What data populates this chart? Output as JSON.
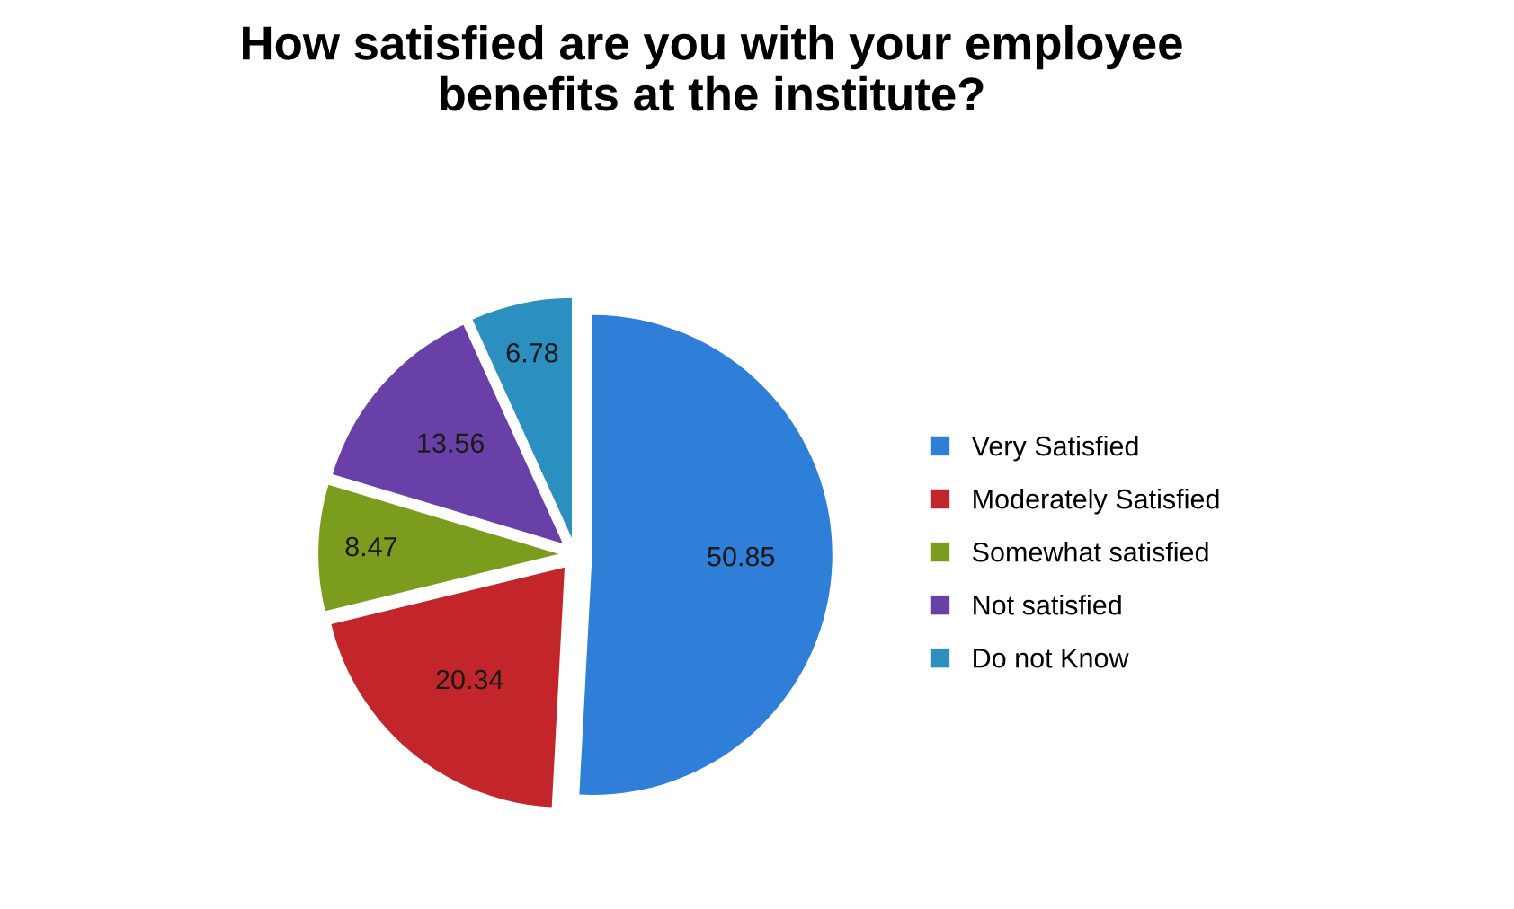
{
  "chart_data": {
    "type": "pie",
    "title": "How satisfied are you with your employee\nbenefits at the institute?",
    "categories": [
      "Very Satisfied",
      "Moderately Satisfied",
      "Somewhat satisfied",
      "Not satisfied",
      "Do not Know"
    ],
    "values": [
      50.85,
      20.34,
      8.47,
      13.56,
      6.78
    ],
    "colors": [
      "#2f7fd8",
      "#c2262a",
      "#7c9c1e",
      "#6840a8",
      "#2b8fc0"
    ],
    "data_labels": true,
    "legend": "right"
  }
}
